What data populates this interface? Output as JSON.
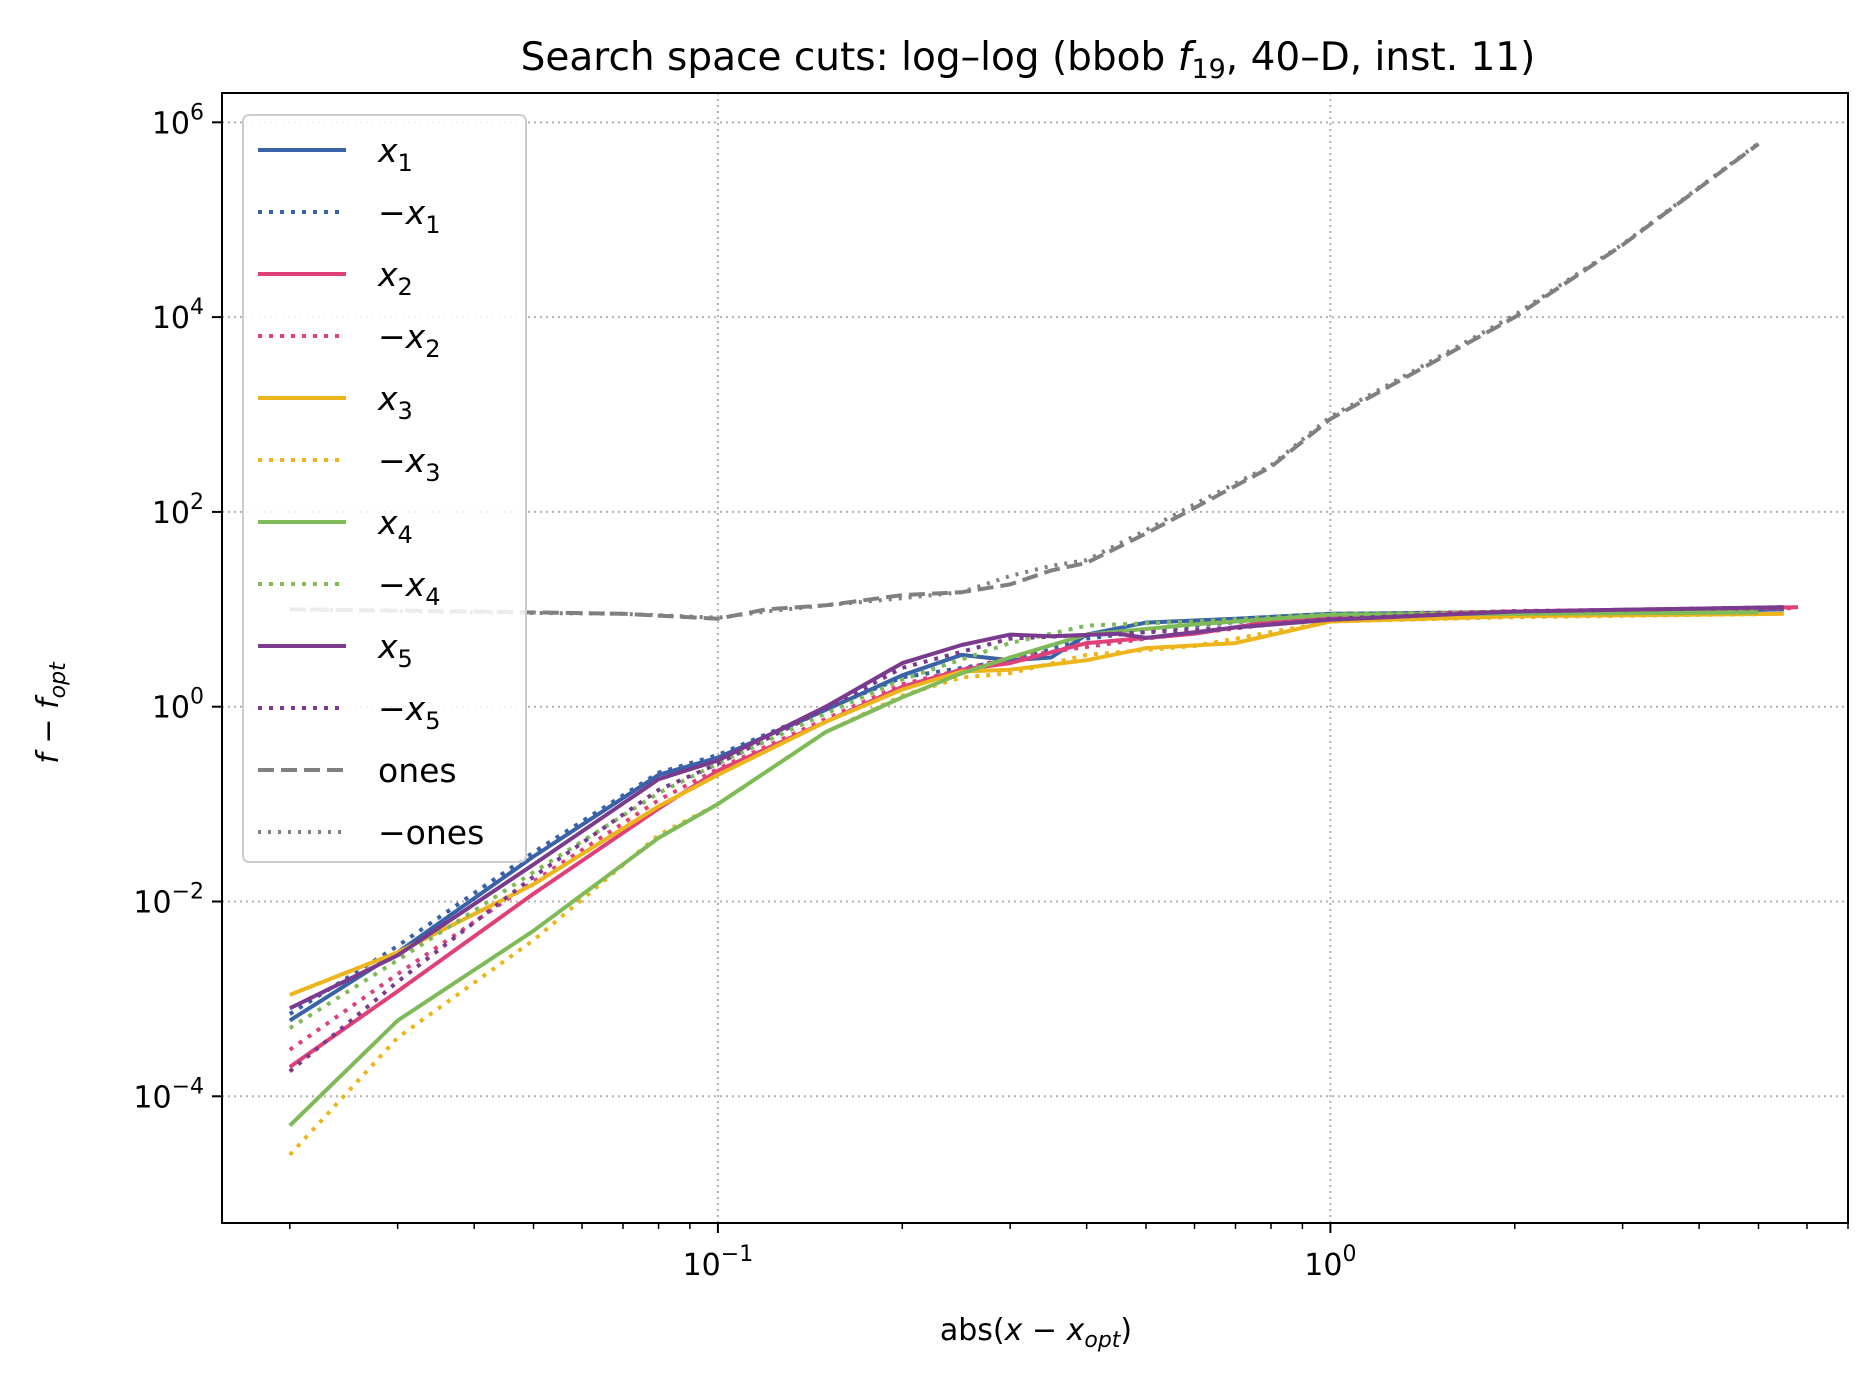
{
  "chart_data": {
    "type": "line",
    "title": "Search space cuts: log–log (bbob f19, 40–D, inst. 11)",
    "title_parts": {
      "prefix": "Search space cuts: log–log (bbob ",
      "f": "f",
      "sub": "19",
      "suffix": ", 40–D, inst. 11)"
    },
    "xlabel": {
      "pre": "abs(",
      "var": "x",
      "op": " − ",
      "var2": "x",
      "sub": "opt",
      "post": ")"
    },
    "ylabel": {
      "var": "f",
      "op": " − ",
      "var2": "f",
      "sub": "opt"
    },
    "xscale": "log",
    "yscale": "log",
    "xlim": [
      0.0155,
      7.0
    ],
    "ylim": [
      5e-06,
      2000000
    ],
    "xticks": [
      {
        "value": 0.1,
        "base": "10",
        "exp": "−1"
      },
      {
        "value": 1,
        "base": "10",
        "exp": "0"
      }
    ],
    "yticks": [
      {
        "value": 1000000,
        "base": "10",
        "exp": "6"
      },
      {
        "value": 10000,
        "base": "10",
        "exp": "4"
      },
      {
        "value": 100,
        "base": "10",
        "exp": "2"
      },
      {
        "value": 1,
        "base": "10",
        "exp": "0"
      },
      {
        "value": 0.01,
        "base": "10",
        "exp": "−2"
      },
      {
        "value": 0.0001,
        "base": "10",
        "exp": "−4"
      }
    ],
    "grid": true,
    "legend_position": "upper-left",
    "series": [
      {
        "name": "x1",
        "label": {
          "neg": "",
          "var": "x",
          "sub": "1"
        },
        "color": "#3a62a8",
        "dash": "solid",
        "points": [
          [
            0.02,
            0.0006
          ],
          [
            0.03,
            0.003
          ],
          [
            0.05,
            0.029
          ],
          [
            0.08,
            0.2
          ],
          [
            0.1,
            0.3
          ],
          [
            0.15,
            0.93
          ],
          [
            0.2,
            2.1
          ],
          [
            0.25,
            3.4
          ],
          [
            0.3,
            3.0
          ],
          [
            0.35,
            3.2
          ],
          [
            0.4,
            5.5
          ],
          [
            0.5,
            7.3
          ],
          [
            0.7,
            8.0
          ],
          [
            1.0,
            9.0
          ],
          [
            2.0,
            9.3
          ],
          [
            4.0,
            9.5
          ],
          [
            5.5,
            10
          ]
        ]
      },
      {
        "name": "-x1",
        "label": {
          "neg": "−",
          "var": "x",
          "sub": "1"
        },
        "color": "#3a62a8",
        "dash": "dot",
        "points": [
          [
            0.02,
            0.0007
          ],
          [
            0.03,
            0.0035
          ],
          [
            0.05,
            0.032
          ],
          [
            0.08,
            0.21
          ],
          [
            0.1,
            0.32
          ],
          [
            0.15,
            0.95
          ],
          [
            0.2,
            2.0
          ],
          [
            0.3,
            3.0
          ],
          [
            0.4,
            5.0
          ],
          [
            0.6,
            6.8
          ],
          [
            1.0,
            8.9
          ],
          [
            2.0,
            9.5
          ],
          [
            5.5,
            10
          ]
        ]
      },
      {
        "name": "x2",
        "label": {
          "neg": "",
          "var": "x",
          "sub": "2"
        },
        "color": "#e0407a",
        "dash": "solid",
        "points": [
          [
            0.02,
            0.0002
          ],
          [
            0.03,
            0.0012
          ],
          [
            0.05,
            0.012
          ],
          [
            0.08,
            0.09
          ],
          [
            0.1,
            0.22
          ],
          [
            0.15,
            0.7
          ],
          [
            0.2,
            1.6
          ],
          [
            0.25,
            2.4
          ],
          [
            0.3,
            2.8
          ],
          [
            0.4,
            4.5
          ],
          [
            0.6,
            5.6
          ],
          [
            0.8,
            7.5
          ],
          [
            1.0,
            8.5
          ],
          [
            2.0,
            9.5
          ],
          [
            5.8,
            10.5
          ]
        ]
      },
      {
        "name": "-x2",
        "label": {
          "neg": "−",
          "var": "x",
          "sub": "2"
        },
        "color": "#e0407a",
        "dash": "dot",
        "points": [
          [
            0.02,
            0.0003
          ],
          [
            0.03,
            0.0018
          ],
          [
            0.05,
            0.016
          ],
          [
            0.08,
            0.11
          ],
          [
            0.1,
            0.23
          ],
          [
            0.15,
            0.75
          ],
          [
            0.2,
            1.7
          ],
          [
            0.3,
            3.2
          ],
          [
            0.5,
            5.0
          ],
          [
            0.8,
            7.0
          ],
          [
            1.0,
            8.4
          ],
          [
            2.0,
            9.6
          ],
          [
            5.8,
            10.3
          ]
        ]
      },
      {
        "name": "x3",
        "label": {
          "neg": "",
          "var": "x",
          "sub": "3"
        },
        "color": "#edb51c",
        "dash": "solid",
        "points": [
          [
            0.02,
            0.0011
          ],
          [
            0.03,
            0.003
          ],
          [
            0.05,
            0.015
          ],
          [
            0.08,
            0.095
          ],
          [
            0.1,
            0.2
          ],
          [
            0.15,
            0.7
          ],
          [
            0.2,
            1.5
          ],
          [
            0.25,
            2.3
          ],
          [
            0.3,
            2.4
          ],
          [
            0.4,
            3.0
          ],
          [
            0.5,
            4.0
          ],
          [
            0.7,
            4.5
          ],
          [
            1.0,
            7.5
          ],
          [
            2.0,
            8.5
          ],
          [
            5.5,
            9.0
          ]
        ]
      },
      {
        "name": "-x3",
        "label": {
          "neg": "−",
          "var": "x",
          "sub": "3"
        },
        "color": "#edb51c",
        "dash": "dot",
        "points": [
          [
            0.02,
            2.5e-05
          ],
          [
            0.03,
            0.0004
          ],
          [
            0.05,
            0.004
          ],
          [
            0.08,
            0.048
          ],
          [
            0.1,
            0.1
          ],
          [
            0.15,
            0.55
          ],
          [
            0.2,
            1.3
          ],
          [
            0.25,
            2.0
          ],
          [
            0.3,
            2.2
          ],
          [
            0.4,
            3.4
          ],
          [
            0.6,
            4.2
          ],
          [
            1.0,
            7.5
          ],
          [
            2.0,
            8.3
          ],
          [
            5.5,
            9.0
          ]
        ]
      },
      {
        "name": "x4",
        "label": {
          "neg": "",
          "var": "x",
          "sub": "4"
        },
        "color": "#7fba58",
        "dash": "solid",
        "points": [
          [
            0.02,
            5e-05
          ],
          [
            0.03,
            0.0006
          ],
          [
            0.05,
            0.005
          ],
          [
            0.08,
            0.045
          ],
          [
            0.1,
            0.1
          ],
          [
            0.15,
            0.55
          ],
          [
            0.2,
            1.25
          ],
          [
            0.25,
            2.2
          ],
          [
            0.3,
            3.2
          ],
          [
            0.4,
            5.5
          ],
          [
            0.6,
            7.0
          ],
          [
            1.0,
            8.8
          ],
          [
            2.0,
            9.0
          ],
          [
            5.0,
            9.3
          ]
        ]
      },
      {
        "name": "-x4",
        "label": {
          "neg": "−",
          "var": "x",
          "sub": "4"
        },
        "color": "#7fba58",
        "dash": "dot",
        "points": [
          [
            0.02,
            0.0005
          ],
          [
            0.03,
            0.0025
          ],
          [
            0.05,
            0.02
          ],
          [
            0.08,
            0.13
          ],
          [
            0.1,
            0.26
          ],
          [
            0.15,
            0.85
          ],
          [
            0.2,
            1.9
          ],
          [
            0.3,
            4.5
          ],
          [
            0.4,
            6.8
          ],
          [
            0.6,
            7.5
          ],
          [
            1.0,
            9.0
          ],
          [
            2.0,
            9.5
          ],
          [
            5.0,
            9.5
          ]
        ]
      },
      {
        "name": "x5",
        "label": {
          "neg": "",
          "var": "x",
          "sub": "5"
        },
        "color": "#7a3b8f",
        "dash": "solid",
        "points": [
          [
            0.02,
            0.0008
          ],
          [
            0.03,
            0.0028
          ],
          [
            0.05,
            0.024
          ],
          [
            0.08,
            0.18
          ],
          [
            0.1,
            0.28
          ],
          [
            0.15,
            1.0
          ],
          [
            0.2,
            2.8
          ],
          [
            0.25,
            4.3
          ],
          [
            0.3,
            5.5
          ],
          [
            0.35,
            5.3
          ],
          [
            0.45,
            5.6
          ],
          [
            0.5,
            5.1
          ],
          [
            0.7,
            6.5
          ],
          [
            1.0,
            7.8
          ],
          [
            2.0,
            9.5
          ],
          [
            5.5,
            10.5
          ]
        ]
      },
      {
        "name": "-x5",
        "label": {
          "neg": "−",
          "var": "x",
          "sub": "5"
        },
        "color": "#7a3b8f",
        "dash": "dot",
        "points": [
          [
            0.02,
            0.00018
          ],
          [
            0.03,
            0.0015
          ],
          [
            0.05,
            0.018
          ],
          [
            0.08,
            0.14
          ],
          [
            0.1,
            0.26
          ],
          [
            0.15,
            0.95
          ],
          [
            0.2,
            2.5
          ],
          [
            0.3,
            5.0
          ],
          [
            0.5,
            5.8
          ],
          [
            0.7,
            6.5
          ],
          [
            1.0,
            8.0
          ],
          [
            2.0,
            9.5
          ],
          [
            5.5,
            10.5
          ]
        ]
      },
      {
        "name": "ones",
        "label": {
          "neg": "",
          "text": "ones"
        },
        "color": "#808080",
        "dash": "dashed",
        "points": [
          [
            0.02,
            10
          ],
          [
            0.04,
            9.5
          ],
          [
            0.07,
            9.0
          ],
          [
            0.1,
            8.0
          ],
          [
            0.12,
            10
          ],
          [
            0.15,
            11
          ],
          [
            0.2,
            14
          ],
          [
            0.25,
            15
          ],
          [
            0.3,
            18
          ],
          [
            0.35,
            25
          ],
          [
            0.4,
            30
          ],
          [
            0.5,
            60
          ],
          [
            0.6,
            110
          ],
          [
            0.8,
            290
          ],
          [
            1.0,
            900
          ],
          [
            2.0,
            10000
          ],
          [
            3.0,
            55000
          ],
          [
            5.0,
            600000
          ]
        ]
      },
      {
        "name": "-ones",
        "label": {
          "neg": "−",
          "text": "ones"
        },
        "color": "#808080",
        "dash": "dotted",
        "points": [
          [
            0.02,
            10
          ],
          [
            0.04,
            9.3
          ],
          [
            0.07,
            9.0
          ],
          [
            0.1,
            8.2
          ],
          [
            0.12,
            9.5
          ],
          [
            0.15,
            11
          ],
          [
            0.2,
            13
          ],
          [
            0.25,
            15
          ],
          [
            0.3,
            22
          ],
          [
            0.35,
            28
          ],
          [
            0.4,
            32
          ],
          [
            0.5,
            65
          ],
          [
            0.6,
            120
          ],
          [
            0.8,
            300
          ],
          [
            1.0,
            950
          ],
          [
            2.0,
            10500
          ],
          [
            3.0,
            56000
          ],
          [
            5.0,
            610000
          ]
        ]
      }
    ]
  }
}
